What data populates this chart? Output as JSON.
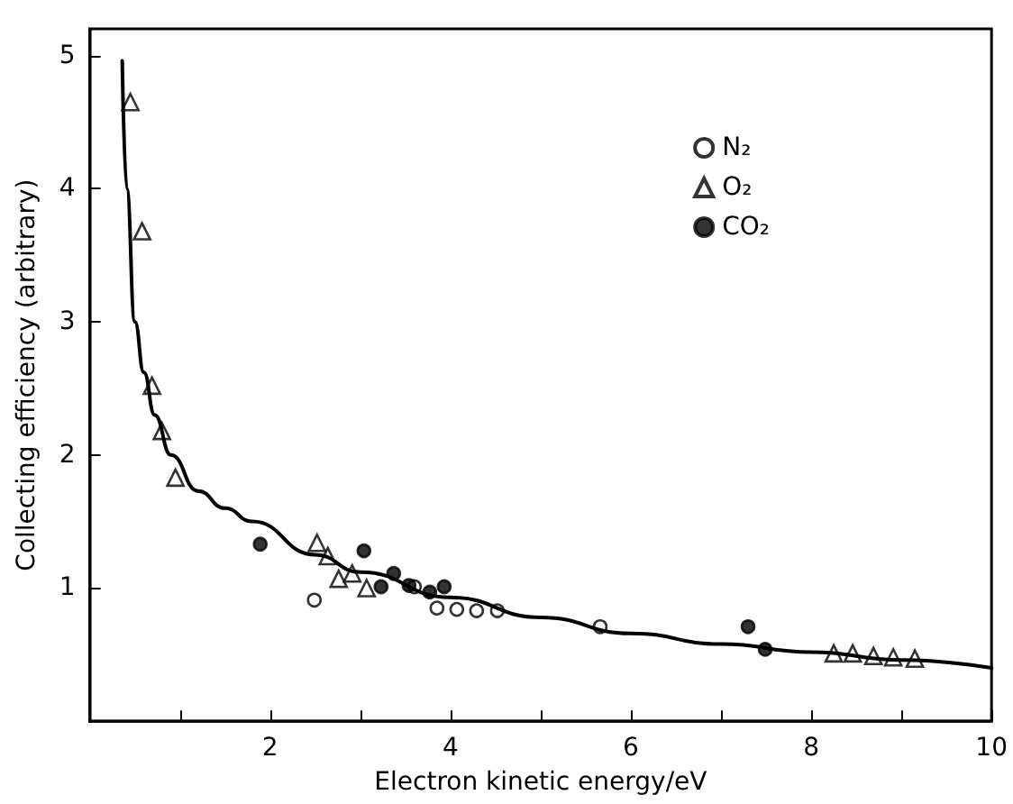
{
  "chart_data": {
    "type": "scatter",
    "xlabel": "Electron kinetic energy/eV",
    "ylabel": "Collecting efficiency (arbitrary)",
    "xlim": [
      0,
      10
    ],
    "xticks": [
      {
        "value": 1,
        "label": null
      },
      2,
      {
        "value": 3,
        "label": null
      },
      4,
      {
        "value": 5,
        "label": null
      },
      6,
      {
        "value": 7,
        "label": null
      },
      8,
      {
        "value": 9,
        "label": null
      },
      10
    ],
    "ylim": [
      0,
      5.2
    ],
    "yticks": [
      1,
      2,
      3,
      4,
      5
    ],
    "grid": false,
    "legend": "top right",
    "series": [
      {
        "name": "N₂",
        "marker": "circle",
        "color": "#ffffff",
        "x": [
          2.49,
          3.6,
          3.85,
          4.07,
          4.29,
          4.52,
          5.66
        ],
        "values": [
          0.91,
          1.01,
          0.85,
          0.84,
          0.83,
          0.83,
          0.71
        ]
      },
      {
        "name": "O₂",
        "marker": "triangle",
        "color": "#ffffff",
        "x": [
          0.45,
          0.58,
          0.69,
          0.8,
          0.95,
          2.52,
          2.64,
          2.76,
          2.91,
          3.07,
          8.25,
          8.46,
          8.69,
          8.91,
          9.15
        ],
        "values": [
          4.65,
          3.68,
          2.52,
          2.18,
          1.83,
          1.34,
          1.24,
          1.07,
          1.11,
          1.0,
          0.51,
          0.51,
          0.49,
          0.48,
          0.47
        ]
      },
      {
        "name": "CO₂",
        "marker": "circle",
        "color": "#000000",
        "x": [
          1.89,
          3.04,
          3.23,
          3.37,
          3.54,
          3.77,
          3.93,
          7.3,
          7.49
        ],
        "values": [
          1.33,
          1.28,
          1.01,
          1.11,
          1.02,
          0.97,
          1.01,
          0.71,
          0.54
        ]
      },
      {
        "type": "line",
        "marker": "none",
        "line_style": "solid",
        "color": "#000000",
        "x": [
          0.36,
          0.41,
          0.5,
          0.6,
          0.72,
          0.9,
          1.2,
          1.5,
          1.8,
          2.5,
          3,
          4,
          5,
          6,
          7,
          8,
          9,
          10
        ],
        "values": [
          4.96,
          4.0,
          3.0,
          2.62,
          2.3,
          2.0,
          1.73,
          1.6,
          1.5,
          1.25,
          1.12,
          0.93,
          0.78,
          0.66,
          0.58,
          0.52,
          0.46,
          0.4
        ]
      }
    ]
  }
}
